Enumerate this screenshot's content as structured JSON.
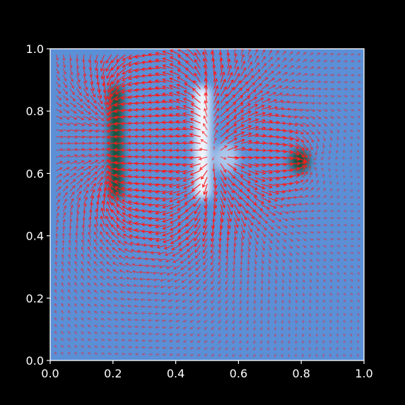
{
  "chart_data": {
    "type": "quiver",
    "title": "",
    "xlabel": "",
    "ylabel": "",
    "xlim": [
      0.0,
      1.0
    ],
    "ylim": [
      0.0,
      1.0
    ],
    "xticks": [
      "0.0",
      "0.2",
      "0.4",
      "0.6",
      "0.8",
      "1.0"
    ],
    "yticks": [
      "0.0",
      "0.2",
      "0.4",
      "0.6",
      "0.8",
      "1.0"
    ],
    "grid": false,
    "colors": {
      "background": "#000000",
      "field_base": "#5b8fd6",
      "arrow": "#ff1a1a",
      "sink": "#0b4a22",
      "source": "#ffffff",
      "axis": "#ffffff"
    },
    "field_features": [
      {
        "name": "plate-left",
        "kind": "sink",
        "x": [
          0.19,
          0.23
        ],
        "y": [
          0.52,
          0.88
        ]
      },
      {
        "name": "plate-middle",
        "kind": "source",
        "x": [
          0.46,
          0.51
        ],
        "y": [
          0.52,
          0.88
        ]
      },
      {
        "name": "blob-right",
        "kind": "sink",
        "center": [
          0.795,
          0.64
        ],
        "radius": 0.03
      },
      {
        "name": "glow-mid",
        "kind": "source",
        "center": [
          0.56,
          0.65
        ],
        "radius": 0.04
      }
    ],
    "arrow_grid": {
      "x_range": [
        0.02,
        0.98
      ],
      "y_range": [
        0.02,
        0.98
      ],
      "count": 45
    }
  }
}
